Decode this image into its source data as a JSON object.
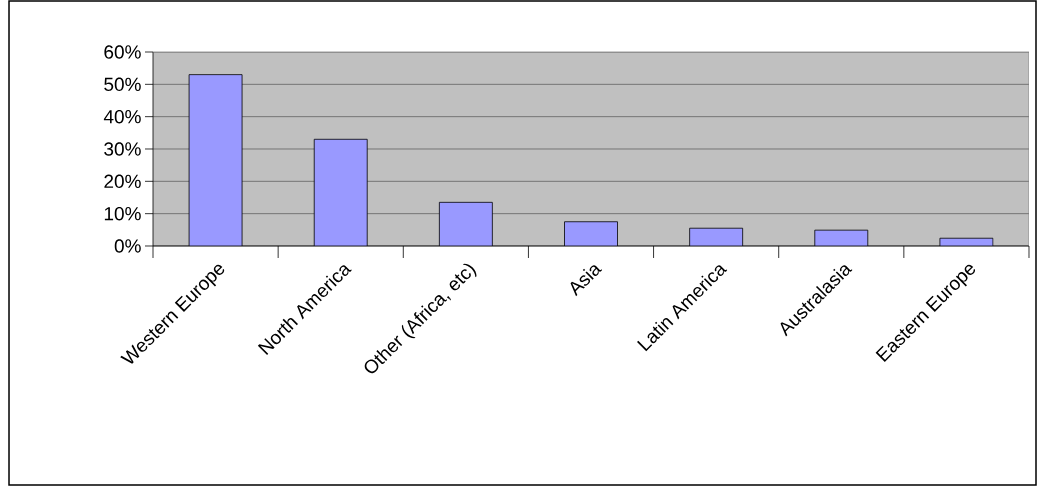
{
  "chart_data": {
    "type": "bar",
    "categories": [
      "Western Europe",
      "North America",
      "Other (Africa, etc)",
      "Asia",
      "Latin America",
      "Australasia",
      "Eastern Europe"
    ],
    "values": [
      53,
      33,
      13.5,
      7.5,
      5.5,
      4.9,
      2.4
    ],
    "color": "#9999ff",
    "ylim": [
      0,
      60
    ],
    "yticks": [
      {
        "value": 0,
        "label": "0%"
      },
      {
        "value": 10,
        "label": "10%"
      },
      {
        "value": 20,
        "label": "20%"
      },
      {
        "value": 30,
        "label": "30%"
      },
      {
        "value": 40,
        "label": "40%"
      },
      {
        "value": 50,
        "label": "50%"
      },
      {
        "value": 60,
        "label": "60%"
      }
    ],
    "grid": "y"
  }
}
